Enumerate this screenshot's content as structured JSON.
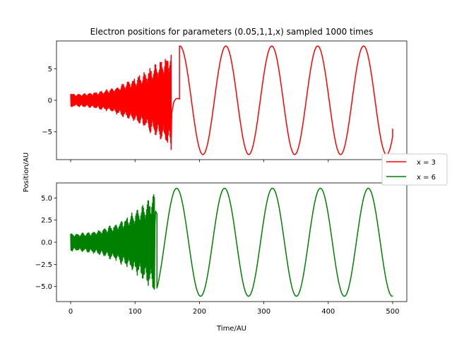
{
  "chart_data": {
    "type": "line",
    "title": "Electron positions for parameters (0.05,1,1,x) sampled 1000 times",
    "xlabel": "Time/AU",
    "ylabel": "Position/AU",
    "xlim": [
      -22,
      522
    ],
    "xticks": [
      0,
      100,
      200,
      300,
      400,
      500
    ],
    "legend_position": "right",
    "legend_items": [
      {
        "label": "x = 3",
        "color": "#ff0000"
      },
      {
        "label": "x = 6",
        "color": "#008000"
      }
    ],
    "panels": [
      {
        "series_name": "x = 3",
        "color": "#ff0000",
        "ylim": [
          -9.4,
          9.4
        ],
        "yticks": [
          -5,
          0,
          5
        ],
        "ytick_labels": [
          "−5",
          "0",
          "5"
        ],
        "oscillation_start_amplitude": 1.0,
        "oscillation_end_time": 156,
        "oscillation_end_amplitude": 8.0,
        "transition_points": [
          [
            156,
            -7.8
          ],
          [
            157,
            -2.0
          ],
          [
            160,
            -0.3
          ],
          [
            163,
            0.2
          ],
          [
            166,
            0.3
          ],
          [
            169,
            0.2
          ]
        ],
        "sinusoid": {
          "amplitude": 8.6,
          "period": 71.3,
          "peak_time": 241,
          "t_start": 169,
          "t_end": 500,
          "end_value": -4.5
        }
      },
      {
        "series_name": "x = 6",
        "color": "#008000",
        "ylim": [
          -6.7,
          6.7
        ],
        "yticks": [
          -5,
          -2.5,
          0,
          2.5,
          5
        ],
        "ytick_labels": [
          "−5.0",
          "−2.5",
          "0.0",
          "2.5",
          "5.0"
        ],
        "oscillation_start_amplitude": 1.0,
        "oscillation_end_time": 130,
        "oscillation_end_amplitude": 5.6,
        "transition_points": [
          [
            130,
            -5.3
          ],
          [
            131,
            2.0
          ],
          [
            132,
            3.5
          ],
          [
            134,
            3.2
          ]
        ],
        "sinusoid": {
          "amplitude": 6.1,
          "period": 74.4,
          "peak_time": 239,
          "t_start": 134,
          "t_end": 500,
          "end_value": -6.1
        }
      }
    ]
  }
}
